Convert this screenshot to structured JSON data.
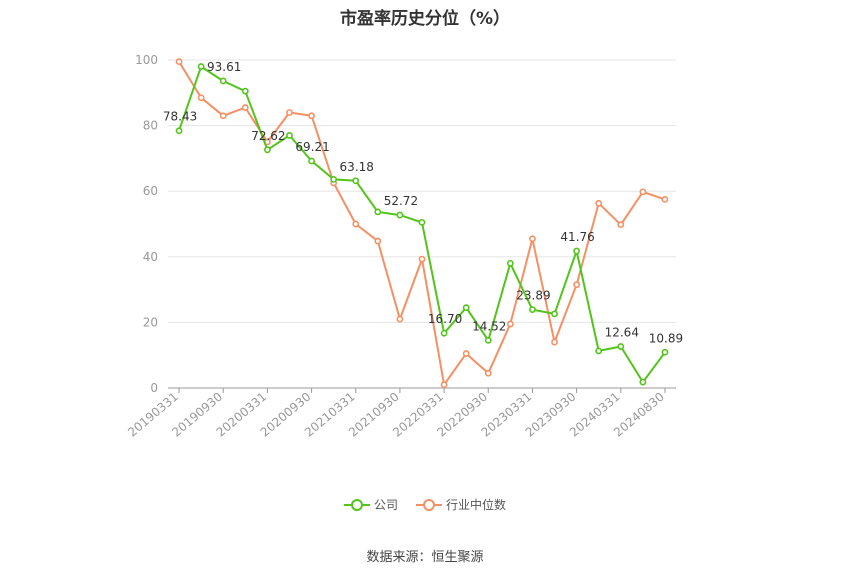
{
  "chart_data": {
    "type": "line",
    "title": "市盈率历史分位（%）",
    "xlabel": "",
    "ylabel": "",
    "ylim": [
      0,
      100
    ],
    "yticks": [
      0,
      20,
      40,
      60,
      80,
      100
    ],
    "grid": true,
    "legend_position": "bottom-center",
    "x": [
      "20190331",
      "20190630",
      "20190930",
      "20191231",
      "20200331",
      "20200630",
      "20200930",
      "20201231",
      "20210331",
      "20210630",
      "20210930",
      "20211231",
      "20220331",
      "20220630",
      "20220930",
      "20221231",
      "20230331",
      "20230630",
      "20230930",
      "20231231",
      "20240331",
      "20240630",
      "20240830"
    ],
    "xtick_labels": [
      "20190331",
      "20190930",
      "20200331",
      "20200930",
      "20210331",
      "20210930",
      "20220331",
      "20220930",
      "20230331",
      "20230930",
      "20240331",
      "20240830"
    ],
    "series": [
      {
        "name": "公司",
        "color": "#52c41a",
        "values": [
          78.43,
          98.0,
          93.61,
          90.5,
          72.62,
          77.0,
          69.21,
          63.6,
          63.18,
          53.7,
          52.72,
          50.5,
          16.7,
          24.5,
          14.52,
          38.0,
          23.89,
          22.6,
          41.76,
          11.3,
          12.64,
          1.8,
          10.89
        ]
      },
      {
        "name": "行业中位数",
        "color": "#f59064",
        "values": [
          99.5,
          88.5,
          83.0,
          85.5,
          75.0,
          84.0,
          83.0,
          62.5,
          50.0,
          44.8,
          21.0,
          39.3,
          1.0,
          10.5,
          4.5,
          19.5,
          45.5,
          14.0,
          31.5,
          56.3,
          49.8,
          59.8,
          57.5
        ]
      }
    ],
    "data_labels": [
      {
        "series": 0,
        "index": 0,
        "text": "78.43"
      },
      {
        "series": 0,
        "index": 2,
        "text": "93.61"
      },
      {
        "series": 0,
        "index": 4,
        "text": "72.62"
      },
      {
        "series": 0,
        "index": 6,
        "text": "69.21"
      },
      {
        "series": 0,
        "index": 8,
        "text": "63.18"
      },
      {
        "series": 0,
        "index": 10,
        "text": "52.72"
      },
      {
        "series": 0,
        "index": 12,
        "text": "16.70"
      },
      {
        "series": 0,
        "index": 14,
        "text": "14.52"
      },
      {
        "series": 0,
        "index": 16,
        "text": "23.89"
      },
      {
        "series": 0,
        "index": 18,
        "text": "41.76"
      },
      {
        "series": 0,
        "index": 20,
        "text": "12.64"
      },
      {
        "series": 0,
        "index": 22,
        "text": "10.89"
      }
    ]
  },
  "legend": {
    "company_label": "公司",
    "industry_label": "行业中位数"
  },
  "source_text": "数据来源：恒生聚源"
}
